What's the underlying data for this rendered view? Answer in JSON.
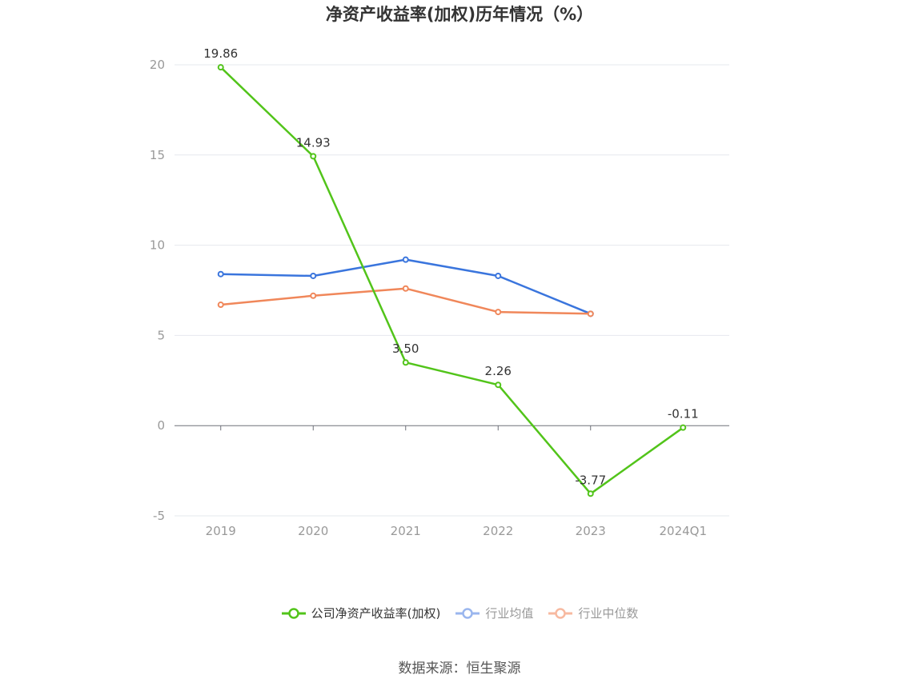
{
  "chart_data": {
    "type": "line",
    "title": "净资产收益率(加权)历年情况（%）",
    "categories": [
      "2019",
      "2020",
      "2021",
      "2022",
      "2023",
      "2024Q1"
    ],
    "ylim": [
      -5,
      20
    ],
    "yticks": [
      20,
      15,
      10,
      5,
      0,
      -5
    ],
    "grid": true,
    "legend_position": "bottom",
    "series": [
      {
        "name": "公司净资产收益率(加权)",
        "color": "#52c41a",
        "values": [
          19.86,
          14.93,
          3.5,
          2.26,
          -3.77,
          -0.11
        ],
        "labels": [
          "19.86",
          "14.93",
          "3.50",
          "2.26",
          "-3.77",
          "-0.11"
        ]
      },
      {
        "name": "行业均值",
        "color": "#3a75dd",
        "values": [
          8.4,
          8.3,
          9.2,
          8.3,
          6.2,
          null
        ]
      },
      {
        "name": "行业中位数",
        "color": "#f0875a",
        "values": [
          6.7,
          7.2,
          7.6,
          6.3,
          6.2,
          null
        ]
      }
    ]
  },
  "legend": {
    "items": [
      {
        "label": "公司净资产收益率(加权)",
        "color": "#52c41a",
        "text_color": "#333333"
      },
      {
        "label": "行业均值",
        "color": "#9ab6ee",
        "text_color": "#999999"
      },
      {
        "label": "行业中位数",
        "color": "#f7b9a0",
        "text_color": "#999999"
      }
    ]
  },
  "source": "数据来源：恒生聚源"
}
